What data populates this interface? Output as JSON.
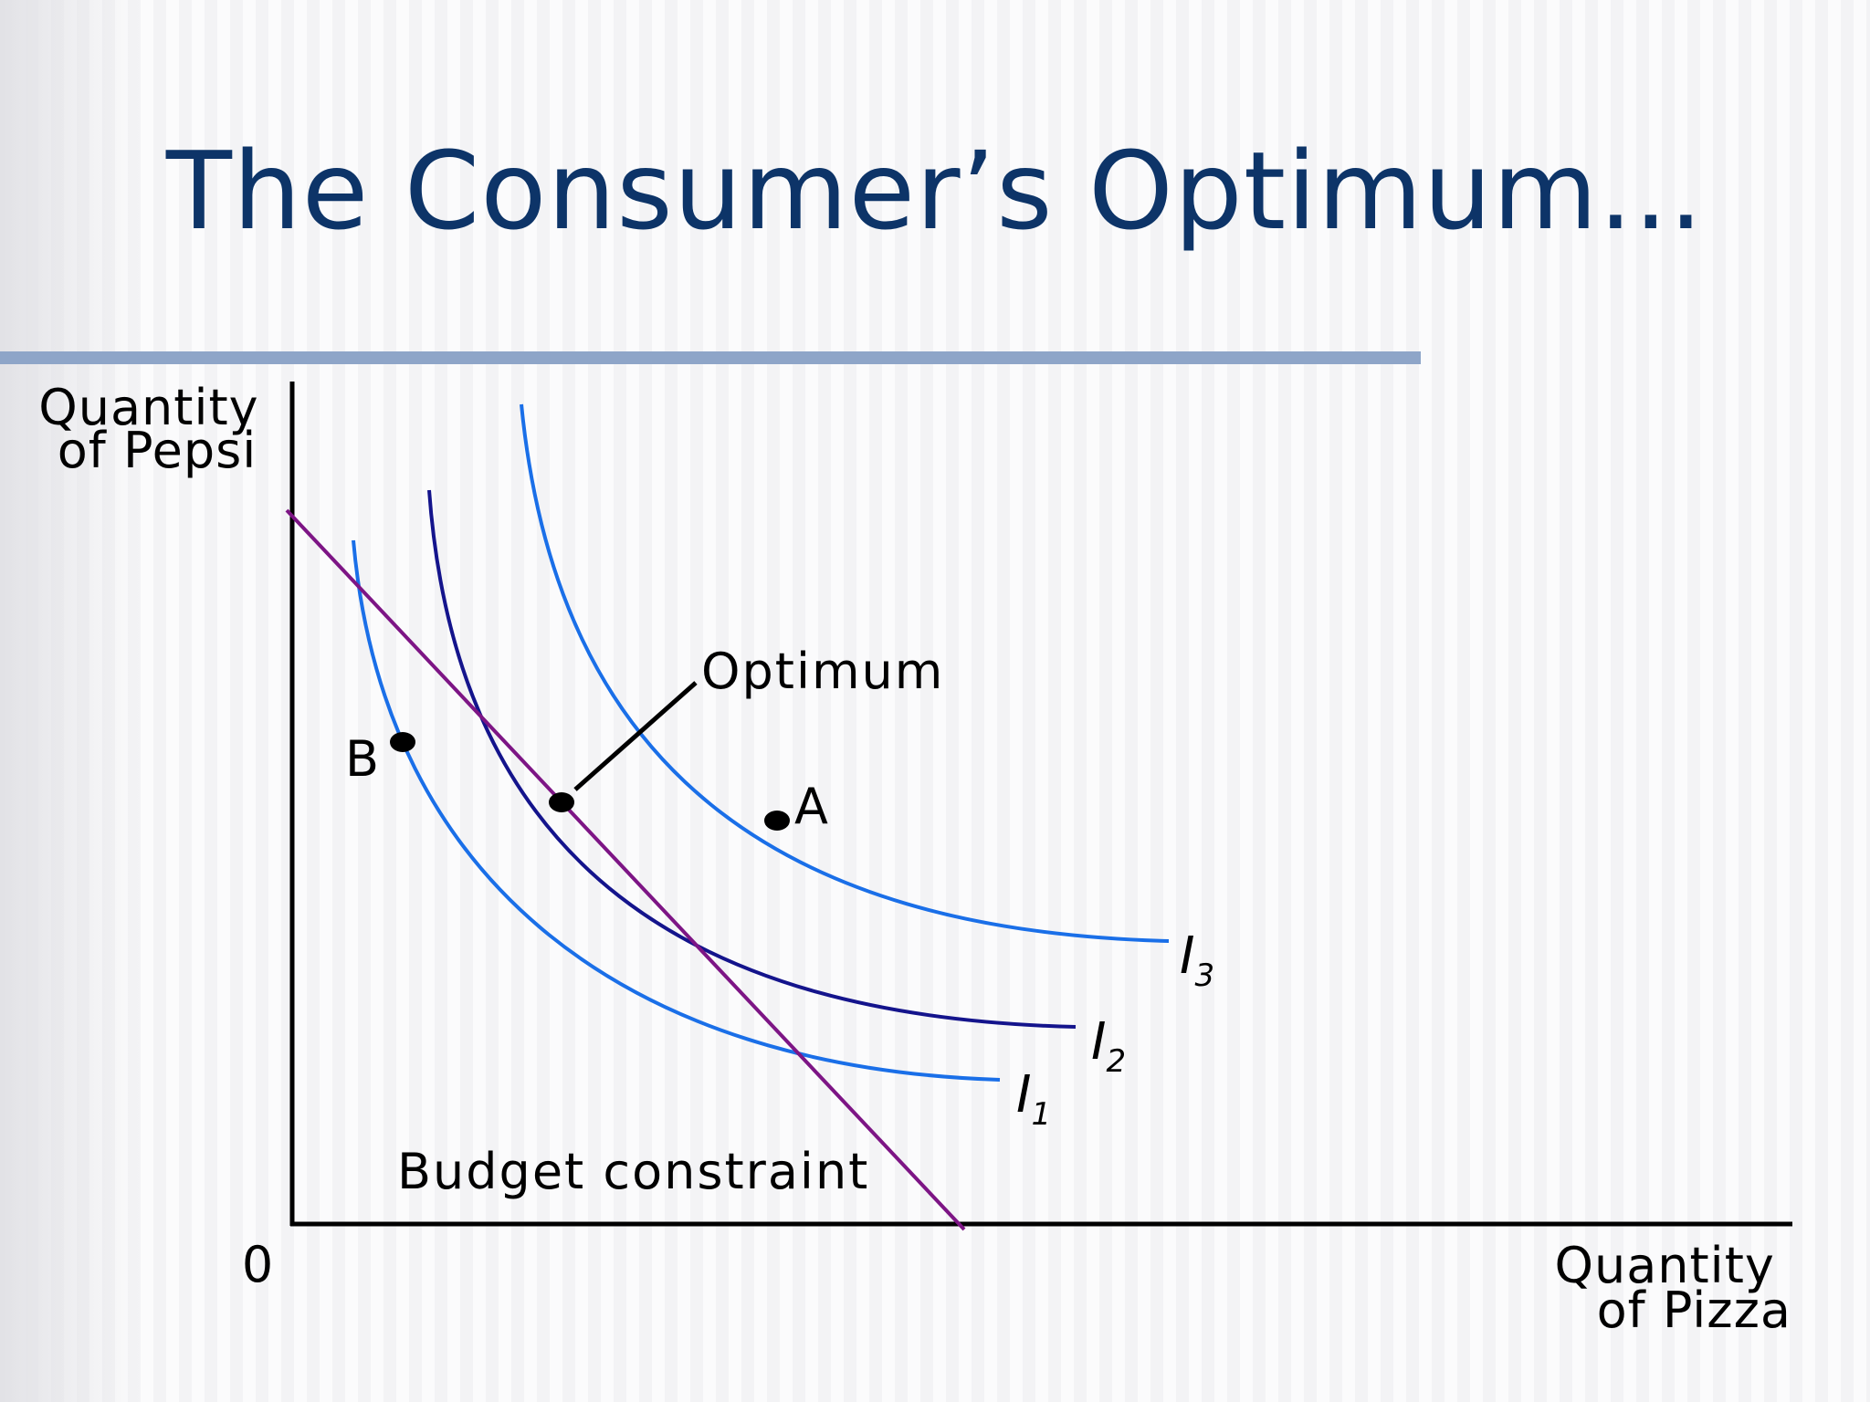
{
  "title": "The Consumer’s Optimum...",
  "axes": {
    "y_label_line1": "Quantity",
    "y_label_line2": "of Pepsi",
    "x_label_line1": "Quantity",
    "x_label_line2": "of Pizza",
    "origin": "0"
  },
  "labels": {
    "optimum": "Optimum",
    "budget": "Budget constraint",
    "point_a": "A",
    "point_b": "B",
    "i_letter": "I",
    "i1_sub": "1",
    "i2_sub": "2",
    "i3_sub": "3"
  },
  "colors": {
    "title": "#0d3468",
    "divider": "#8ea5c8",
    "light_curve": "#1a6fe8",
    "dark_curve": "#14148c",
    "budget_line": "#7d1585"
  }
}
